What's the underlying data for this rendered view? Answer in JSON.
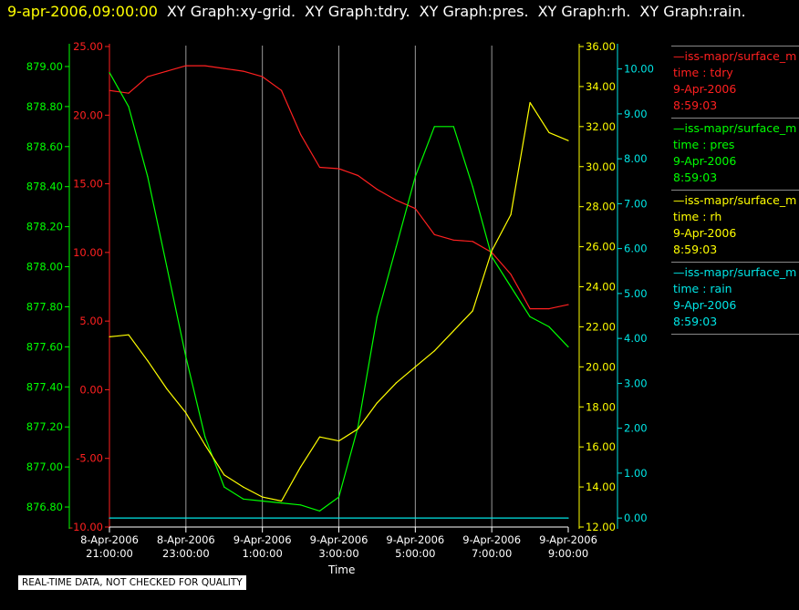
{
  "header": {
    "timestamp": "9-apr-2006,09:00:00",
    "graphs": [
      "XY Graph:xy-grid.",
      "XY Graph:tdry.",
      "XY Graph:pres.",
      "XY Graph:rh.",
      "XY Graph:rain."
    ]
  },
  "colors": {
    "timestamp": "#ffff00",
    "header_text": "#ffffff",
    "tdry": "#ff2020",
    "pres": "#00ff00",
    "rh": "#ffff00",
    "rain": "#00e5e5",
    "grid": "#ffffff"
  },
  "legend": [
    {
      "series": "tdry",
      "line1": "—iss-mapr/surface_m",
      "line2": "time : tdry",
      "line3": "9-Apr-2006",
      "line4": "8:59:03"
    },
    {
      "series": "pres",
      "line1": "—iss-mapr/surface_m",
      "line2": "time : pres",
      "line3": "9-Apr-2006",
      "line4": "8:59:03"
    },
    {
      "series": "rh",
      "line1": "—iss-mapr/surface_m",
      "line2": "time : rh",
      "line3": "9-Apr-2006",
      "line4": "8:59:03"
    },
    {
      "series": "rain",
      "line1": "—iss-mapr/surface_m",
      "line2": "time : rain",
      "line3": "9-Apr-2006",
      "line4": "8:59:03"
    }
  ],
  "footer": {
    "qc_note": "REAL-TIME DATA, NOT CHECKED FOR QUALITY",
    "x_axis_title": "Time"
  },
  "chart_data": {
    "type": "line",
    "xlabel": "Time",
    "x_ticks": [
      {
        "date": "8-Apr-2006",
        "time": "21:00:00",
        "h": 0
      },
      {
        "date": "8-Apr-2006",
        "time": "23:00:00",
        "h": 2
      },
      {
        "date": "9-Apr-2006",
        "time": "1:00:00",
        "h": 4
      },
      {
        "date": "9-Apr-2006",
        "time": "3:00:00",
        "h": 6
      },
      {
        "date": "9-Apr-2006",
        "time": "5:00:00",
        "h": 8
      },
      {
        "date": "9-Apr-2006",
        "time": "7:00:00",
        "h": 10
      },
      {
        "date": "9-Apr-2006",
        "time": "9:00:00",
        "h": 12
      }
    ],
    "xlim": [
      0,
      12
    ],
    "grid": true,
    "axes": [
      {
        "series": "pres",
        "ylim": [
          876.7,
          879.1
        ],
        "ticks": [
          "876.80",
          "877.00",
          "877.20",
          "877.40",
          "877.60",
          "877.80",
          "878.00",
          "878.20",
          "878.40",
          "878.60",
          "878.80",
          "879.00"
        ]
      },
      {
        "series": "tdry",
        "ylim": [
          -10,
          25
        ],
        "ticks": [
          "-10.00",
          "-5.00",
          "0.00",
          "5.00",
          "10.00",
          "15.00",
          "20.00",
          "25.00"
        ]
      },
      {
        "series": "rh",
        "ylim": [
          12,
          36
        ],
        "ticks": [
          "12.00",
          "14.00",
          "16.00",
          "18.00",
          "20.00",
          "22.00",
          "24.00",
          "26.00",
          "28.00",
          "30.00",
          "32.00",
          "34.00",
          "36.00"
        ]
      },
      {
        "series": "rain",
        "ylim": [
          -0.2,
          10.5
        ],
        "ticks": [
          "0.00",
          "1.00",
          "2.00",
          "3.00",
          "4.00",
          "5.00",
          "6.00",
          "7.00",
          "8.00",
          "9.00",
          "10.00"
        ]
      }
    ],
    "series": [
      {
        "name": "tdry",
        "x": [
          0,
          0.5,
          1,
          1.5,
          2,
          2.5,
          3,
          3.5,
          4,
          4.5,
          5,
          5.5,
          6,
          6.5,
          7,
          7.5,
          8,
          8.5,
          9,
          9.5,
          10,
          10.5,
          11,
          11.5,
          12
        ],
        "values": [
          21.8,
          21.6,
          22.8,
          23.2,
          23.6,
          23.6,
          23.4,
          23.2,
          22.8,
          21.8,
          18.6,
          16.2,
          16.1,
          15.6,
          14.6,
          13.8,
          13.2,
          11.3,
          10.9,
          10.8,
          10.0,
          8.4,
          5.9,
          5.9,
          6.2
        ]
      },
      {
        "name": "pres",
        "x": [
          0,
          0.5,
          1,
          1.5,
          2,
          2.5,
          3,
          3.5,
          4,
          4.5,
          5,
          5.5,
          6,
          6.5,
          7,
          7.5,
          8,
          8.5,
          9,
          9.5,
          10,
          10.5,
          11,
          11.5,
          12
        ],
        "values": [
          878.97,
          878.8,
          878.45,
          878.0,
          877.55,
          877.15,
          876.9,
          876.84,
          876.83,
          876.82,
          876.81,
          876.78,
          876.85,
          877.2,
          877.75,
          878.1,
          878.45,
          878.7,
          878.7,
          878.4,
          878.05,
          877.9,
          877.75,
          877.7,
          877.6
        ]
      },
      {
        "name": "rh",
        "x": [
          0,
          0.5,
          1,
          1.5,
          2,
          2.5,
          3,
          3.5,
          4,
          4.5,
          5,
          5.5,
          6,
          6.5,
          7,
          7.5,
          8,
          8.5,
          9,
          9.5,
          10,
          10.5,
          11,
          11.5,
          12
        ],
        "values": [
          21.5,
          21.6,
          20.3,
          18.9,
          17.7,
          16.1,
          14.6,
          14.0,
          13.5,
          13.3,
          15.0,
          16.5,
          16.3,
          16.9,
          18.2,
          19.2,
          20.0,
          20.8,
          21.8,
          22.8,
          25.8,
          27.6,
          33.2,
          31.7,
          31.3
        ]
      },
      {
        "name": "rain",
        "x": [
          0,
          12
        ],
        "values": [
          0.0,
          0.0
        ]
      }
    ]
  }
}
